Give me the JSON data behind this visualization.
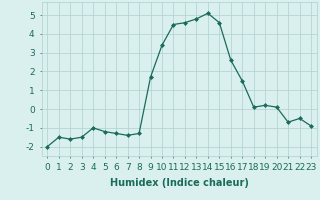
{
  "x": [
    0,
    1,
    2,
    3,
    4,
    5,
    6,
    7,
    8,
    9,
    10,
    11,
    12,
    13,
    14,
    15,
    16,
    17,
    18,
    19,
    20,
    21,
    22,
    23
  ],
  "y": [
    -2.0,
    -1.5,
    -1.6,
    -1.5,
    -1.0,
    -1.2,
    -1.3,
    -1.4,
    -1.3,
    1.7,
    3.4,
    4.5,
    4.6,
    4.8,
    5.1,
    4.6,
    2.6,
    1.5,
    0.1,
    0.2,
    0.1,
    -0.7,
    -0.5,
    -0.9
  ],
  "xlabel": "Humidex (Indice chaleur)",
  "xlim": [
    -0.5,
    23.5
  ],
  "ylim": [
    -2.5,
    5.7
  ],
  "yticks": [
    -2,
    -1,
    0,
    1,
    2,
    3,
    4,
    5
  ],
  "xticks": [
    0,
    1,
    2,
    3,
    4,
    5,
    6,
    7,
    8,
    9,
    10,
    11,
    12,
    13,
    14,
    15,
    16,
    17,
    18,
    19,
    20,
    21,
    22,
    23
  ],
  "line_color": "#1a6b5a",
  "marker": "D",
  "marker_size": 2.0,
  "bg_color": "#d9f0ee",
  "grid_color": "#b0d0d0",
  "xlabel_fontsize": 7,
  "tick_fontsize": 6.5
}
